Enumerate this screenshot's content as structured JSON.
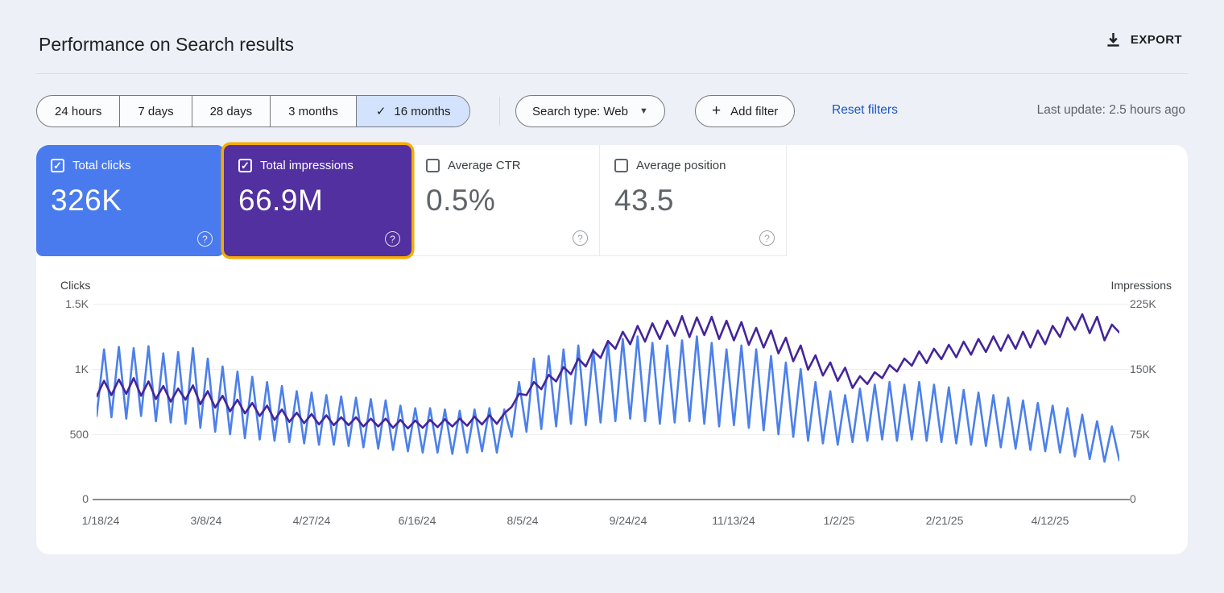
{
  "header": {
    "title": "Performance on Search results",
    "export_label": "EXPORT"
  },
  "filters": {
    "date_ranges": [
      {
        "label": "24 hours",
        "selected": false
      },
      {
        "label": "7 days",
        "selected": false
      },
      {
        "label": "28 days",
        "selected": false
      },
      {
        "label": "3 months",
        "selected": false
      },
      {
        "label": "16 months",
        "selected": true
      }
    ],
    "selected_check": "✓",
    "search_type_label": "Search type: Web",
    "add_filter_label": "Add filter",
    "reset_filters_label": "Reset filters",
    "last_update": "Last update: 2.5 hours ago"
  },
  "metrics": [
    {
      "label": "Total clicks",
      "value": "326K",
      "checked": true,
      "color": "#4a7bee",
      "highlight": false
    },
    {
      "label": "Total impressions",
      "value": "66.9M",
      "checked": true,
      "color": "#52309f",
      "highlight": true,
      "highlight_color": "#f9ab00"
    },
    {
      "label": "Average CTR",
      "value": "0.5%",
      "checked": false
    },
    {
      "label": "Average position",
      "value": "43.5",
      "checked": false
    }
  ],
  "chart_data": {
    "type": "line",
    "grid": true,
    "legend_position": "none",
    "left_axis": {
      "title": "Clicks",
      "ylim": [
        0,
        1500
      ],
      "ticks": [
        "1.5K",
        "1K",
        "500",
        "0"
      ]
    },
    "right_axis": {
      "title": "Impressions",
      "ylim": [
        0,
        225000
      ],
      "ticks": [
        "225K",
        "150K",
        "75K",
        "0"
      ]
    },
    "x_ticks": [
      "1/18/24",
      "3/8/24",
      "4/27/24",
      "6/16/24",
      "8/5/24",
      "9/24/24",
      "11/13/24",
      "1/2/25",
      "2/21/25",
      "4/12/25"
    ],
    "series": [
      {
        "name": "Total clicks",
        "axis": "left",
        "color": "#4c80ea",
        "values": [
          640,
          1150,
          630,
          1170,
          620,
          1160,
          640,
          1175,
          600,
          1120,
          590,
          1130,
          580,
          1160,
          550,
          1080,
          520,
          1020,
          500,
          980,
          470,
          940,
          460,
          900,
          450,
          870,
          440,
          830,
          430,
          820,
          420,
          800,
          420,
          790,
          410,
          780,
          400,
          770,
          390,
          760,
          380,
          720,
          370,
          700,
          360,
          700,
          360,
          690,
          350,
          680,
          360,
          690,
          370,
          700,
          360,
          690,
          480,
          900,
          520,
          1080,
          540,
          1100,
          560,
          1150,
          580,
          1180,
          570,
          1150,
          590,
          1200,
          600,
          1230,
          620,
          1250,
          600,
          1200,
          580,
          1180,
          590,
          1220,
          600,
          1250,
          580,
          1200,
          560,
          1150,
          570,
          1180,
          550,
          1150,
          530,
          1100,
          500,
          1050,
          480,
          1000,
          450,
          900,
          430,
          830,
          420,
          800,
          440,
          850,
          450,
          880,
          460,
          900,
          450,
          880,
          460,
          900,
          450,
          880,
          440,
          860,
          430,
          840,
          420,
          820,
          410,
          800,
          400,
          780,
          390,
          760,
          380,
          740,
          370,
          720,
          360,
          700,
          330,
          650,
          310,
          600,
          290,
          560,
          300
        ]
      },
      {
        "name": "Total impressions",
        "axis": "right",
        "color": "#44259a",
        "values": [
          118500,
          136500,
          120000,
          138000,
          121500,
          139500,
          119250,
          135750,
          115500,
          130500,
          112500,
          127500,
          114750,
          131250,
          109500,
          124500,
          105750,
          119250,
          101250,
          114750,
          99000,
          111000,
          96000,
          108000,
          91500,
          103500,
          89250,
          99750,
          87750,
          98250,
          86250,
          96750,
          85500,
          94500,
          85500,
          94500,
          84000,
          93000,
          84000,
          93000,
          82500,
          91500,
          81750,
          90750,
          82500,
          91500,
          83250,
          92250,
          84000,
          93000,
          84750,
          95250,
          86250,
          96750,
          87000,
          99000,
          106500,
          121500,
          120000,
          135000,
          126750,
          143250,
          135750,
          152250,
          144000,
          162000,
          153000,
          171000,
          162750,
          182250,
          173250,
          192750,
          178500,
          199500,
          181500,
          202500,
          184500,
          205500,
          188250,
          210750,
          186750,
          209250,
          189000,
          210000,
          184500,
          205500,
          183000,
          204000,
          177750,
          197250,
          174750,
          194250,
          168000,
          186000,
          159000,
          177000,
          149250,
          165750,
          142500,
          157500,
          136500,
          151500,
          128250,
          141750,
          132750,
          146250,
          139500,
          154500,
          147000,
          162000,
          153750,
          170250,
          156750,
          173250,
          161250,
          177750,
          163500,
          181500,
          166500,
          184500,
          169500,
          187500,
          171000,
          189000,
          173250,
          192750,
          174750,
          194250,
          178500,
          199500,
          186750,
          209250,
          195000,
          213000,
          191250,
          210000,
          183000,
          201000,
          192000
        ]
      }
    ]
  }
}
